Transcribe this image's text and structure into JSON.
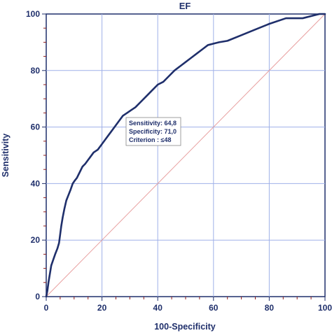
{
  "chart_data": {
    "type": "line",
    "title": "EF",
    "xlabel": "100-Specificity",
    "ylabel": "Sensitivity",
    "xlim": [
      0,
      100
    ],
    "ylim": [
      0,
      100
    ],
    "xticks": [
      0,
      20,
      40,
      60,
      80,
      100
    ],
    "yticks": [
      0,
      20,
      40,
      60,
      80,
      100
    ],
    "x_tick_labels": [
      "0",
      "20",
      "40",
      "60",
      "80",
      "100"
    ],
    "y_tick_labels": [
      "0",
      "20",
      "40",
      "60",
      "80",
      "100"
    ],
    "grid": true,
    "series": [
      {
        "x": [
          0,
          0.4,
          0.8,
          1.3,
          1.8,
          2.5,
          3.2,
          4.0,
          4.6,
          5.0,
          5.4,
          5.9,
          6.5,
          7.2,
          8.0,
          8.8,
          9.5,
          10.2,
          11.0,
          12.0,
          13.0,
          14.0,
          15.5,
          17.0,
          18.5,
          20.0,
          21.5,
          23.0,
          24.5,
          26.0,
          27.5,
          29.0,
          30.5,
          32.0,
          34.0,
          36.0,
          38.0,
          40.0,
          42.0,
          44.0,
          46.0,
          48.0,
          50.0,
          52.0,
          54.0,
          56.0,
          58.0,
          60.0,
          62.0,
          65.0,
          70.0,
          75.0,
          80.0,
          86.0,
          92.0,
          96.0,
          98.0,
          100.0
        ],
        "y": [
          0,
          2,
          5,
          8,
          11,
          13,
          15,
          17,
          19,
          22,
          25,
          28,
          31,
          34,
          36,
          38,
          40,
          41,
          42,
          44,
          46,
          47,
          49,
          51,
          52,
          54,
          56,
          58,
          60,
          62,
          64,
          65,
          66,
          67,
          69,
          71,
          73,
          75,
          76,
          78,
          80,
          81.5,
          83,
          84.5,
          86,
          87.5,
          89,
          89.5,
          90,
          90.5,
          92.5,
          94.5,
          96.5,
          98.5,
          98.5,
          99.5,
          100,
          100
        ],
        "color": "#1f2f6b"
      },
      {
        "x": [
          0,
          100
        ],
        "y": [
          0,
          100
        ],
        "color": "#e8a0a0"
      }
    ],
    "annotations": [
      "Sensitivity: 64,8",
      "Specificity: 71,0",
      "Criterion : ≤48"
    ],
    "colors": {
      "roc_line": "#1f2f6b",
      "diagonal": "#e8a0a0",
      "grid": "#9fb0e8",
      "axis": "#1f2f6b",
      "tick_marks": "#8b1a1a",
      "text": "#1f2f6b"
    }
  }
}
